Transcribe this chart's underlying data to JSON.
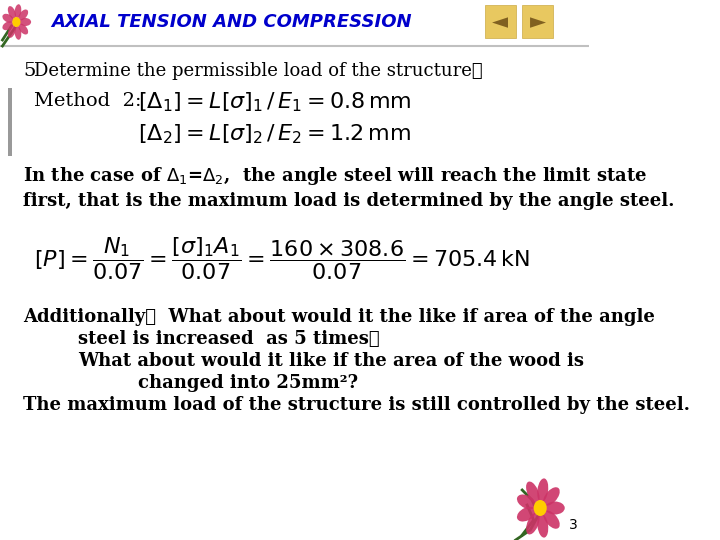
{
  "bg_color": "#ffffff",
  "header_bar_color": "#c0c0c0",
  "title_text": "AXIAL TENSION AND COMPRESSION",
  "title_color": "#0000cc",
  "nav_bg_color": "#e8c860",
  "nav_arrow_color": "#806020",
  "line1_a": "5",
  "line1_b": "Determine the permissible load of the structure：",
  "line2": "Method  2:",
  "line3_plain": "In the case of ",
  "line3_end": ",  the angle steel will reach the limit state",
  "line4": "first, that is the maximum load is determined by the angle steel.",
  "add1": "Additionally：  What about would it the like if area of the angle",
  "add2": "steel is increased  as 5 times？",
  "add3": "What about would it like if the area of the wood is",
  "add4": "changed into 25mm²?",
  "add5": "The maximum load of the structure is still controlled by the steel.",
  "page_num": "3",
  "main_font_size": 13,
  "title_font_size": 13
}
